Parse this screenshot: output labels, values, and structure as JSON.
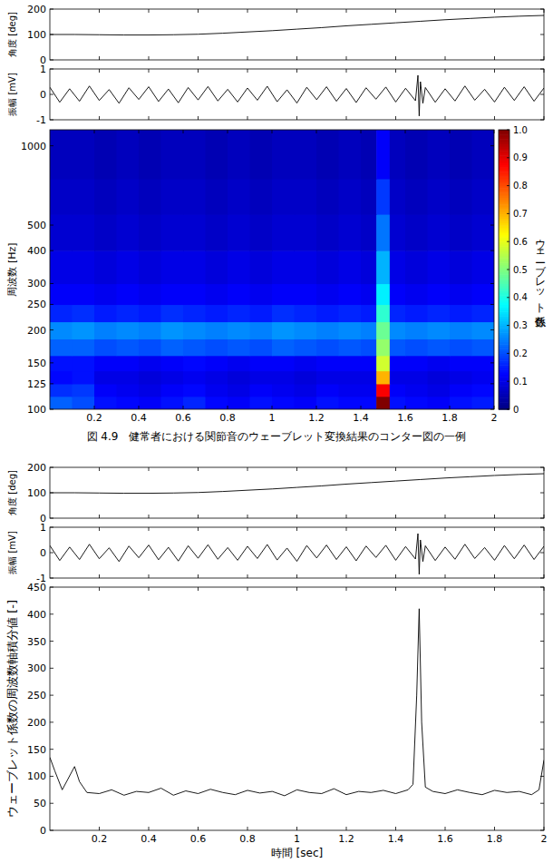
{
  "figure_caption": "図 4.9　健常者における関節音のウェーブレット変換結果のコンター図の一例",
  "chart_data": [
    {
      "type": "line",
      "y_label": "角度 [deg]",
      "color": "#000000",
      "tick_labels": "y",
      "x": [
        0,
        0.1,
        0.2,
        0.3,
        0.4,
        0.5,
        0.6,
        0.7,
        0.8,
        0.9,
        1,
        1.1,
        1.2,
        1.3,
        1.4,
        1.5,
        1.6,
        1.7,
        1.8,
        1.9,
        2
      ],
      "values": [
        100,
        100,
        99,
        98,
        98,
        99,
        101,
        105,
        110,
        115,
        121,
        127,
        134,
        140,
        146,
        152,
        158,
        163,
        168,
        172,
        175
      ],
      "xlim": [
        0,
        2
      ],
      "ylim": [
        0,
        200
      ],
      "xticks": [
        0.2,
        0.4,
        0.6,
        0.8,
        1,
        1.2,
        1.4,
        1.6,
        1.8,
        2
      ],
      "yticks": [
        0,
        100,
        200
      ]
    },
    {
      "type": "line",
      "y_label": "振幅 [mV]",
      "color": "#000000",
      "tick_labels": "y",
      "x": [
        0,
        0.04,
        0.08,
        0.12,
        0.16,
        0.2,
        0.24,
        0.28,
        0.32,
        0.36,
        0.4,
        0.44,
        0.48,
        0.52,
        0.56,
        0.6,
        0.64,
        0.68,
        0.72,
        0.76,
        0.8,
        0.84,
        0.88,
        0.92,
        0.96,
        1,
        1.04,
        1.08,
        1.12,
        1.16,
        1.2,
        1.24,
        1.28,
        1.32,
        1.36,
        1.4,
        1.44,
        1.48,
        1.49,
        1.495,
        1.5,
        1.51,
        1.52,
        1.56,
        1.6,
        1.64,
        1.68,
        1.72,
        1.76,
        1.8,
        1.84,
        1.88,
        1.92,
        1.96,
        2
      ],
      "values": [
        0.28,
        -0.31,
        0.22,
        -0.27,
        0.33,
        -0.24,
        0.19,
        -0.35,
        0.26,
        -0.2,
        0.3,
        -0.28,
        0.21,
        -0.33,
        0.27,
        -0.22,
        0.31,
        -0.26,
        0.2,
        -0.3,
        0.25,
        -0.23,
        0.32,
        -0.29,
        0.18,
        -0.34,
        0.28,
        -0.21,
        0.3,
        -0.27,
        0.23,
        -0.32,
        0.26,
        -0.19,
        0.29,
        -0.3,
        0.24,
        -0.25,
        0.75,
        -0.85,
        0.5,
        -0.35,
        0.27,
        -0.31,
        0.22,
        -0.26,
        0.33,
        -0.23,
        0.2,
        -0.3,
        0.28,
        -0.24,
        0.3,
        -0.27,
        0.25
      ],
      "xlim": [
        0,
        2
      ],
      "ylim": [
        -1,
        1
      ],
      "xticks": [
        0.2,
        0.4,
        0.6,
        0.8,
        1,
        1.2,
        1.4,
        1.6,
        1.8,
        2
      ],
      "yticks": [
        -1,
        0,
        1
      ]
    },
    {
      "type": "heatmap",
      "y_label": "周波数 [Hz]",
      "log": "y",
      "x_edges": [
        0,
        0.1,
        0.2,
        0.3,
        0.4,
        0.5,
        0.6,
        0.7,
        0.8,
        0.9,
        1,
        1.1,
        1.2,
        1.3,
        1.4,
        1.47,
        1.53,
        1.6,
        1.7,
        1.8,
        1.9,
        2
      ],
      "y_edges": [
        100,
        112,
        125,
        140,
        160,
        185,
        215,
        250,
        300,
        400,
        550,
        750,
        1150
      ],
      "cells": [
        [
          0.22,
          0.2,
          0.14,
          0.13,
          0.12,
          0.14,
          0.16,
          0.13,
          0.12,
          0.14,
          0.13,
          0.12,
          0.14,
          0.13,
          0.13,
          1.0,
          0.14,
          0.13,
          0.12,
          0.14,
          0.15
        ],
        [
          0.17,
          0.18,
          0.12,
          0.11,
          0.1,
          0.12,
          0.13,
          0.11,
          0.1,
          0.12,
          0.11,
          0.1,
          0.12,
          0.11,
          0.11,
          0.88,
          0.12,
          0.11,
          0.1,
          0.12,
          0.13
        ],
        [
          0.13,
          0.14,
          0.1,
          0.1,
          0.09,
          0.1,
          0.11,
          0.1,
          0.09,
          0.1,
          0.1,
          0.09,
          0.1,
          0.1,
          0.1,
          0.7,
          0.1,
          0.1,
          0.09,
          0.1,
          0.11
        ],
        [
          0.14,
          0.14,
          0.12,
          0.12,
          0.11,
          0.12,
          0.13,
          0.12,
          0.11,
          0.12,
          0.12,
          0.11,
          0.12,
          0.12,
          0.12,
          0.58,
          0.12,
          0.12,
          0.11,
          0.12,
          0.12
        ],
        [
          0.22,
          0.22,
          0.2,
          0.21,
          0.2,
          0.22,
          0.21,
          0.2,
          0.21,
          0.2,
          0.22,
          0.21,
          0.2,
          0.21,
          0.2,
          0.52,
          0.21,
          0.2,
          0.21,
          0.2,
          0.21
        ],
        [
          0.26,
          0.27,
          0.25,
          0.26,
          0.25,
          0.27,
          0.26,
          0.25,
          0.26,
          0.25,
          0.27,
          0.26,
          0.25,
          0.26,
          0.25,
          0.48,
          0.26,
          0.25,
          0.26,
          0.25,
          0.26
        ],
        [
          0.16,
          0.17,
          0.15,
          0.16,
          0.15,
          0.17,
          0.16,
          0.15,
          0.16,
          0.15,
          0.17,
          0.16,
          0.15,
          0.16,
          0.15,
          0.42,
          0.16,
          0.15,
          0.16,
          0.15,
          0.16
        ],
        [
          0.12,
          0.12,
          0.11,
          0.12,
          0.11,
          0.12,
          0.12,
          0.11,
          0.12,
          0.11,
          0.12,
          0.12,
          0.11,
          0.12,
          0.11,
          0.36,
          0.12,
          0.11,
          0.12,
          0.11,
          0.12
        ],
        [
          0.1,
          0.1,
          0.09,
          0.1,
          0.09,
          0.1,
          0.1,
          0.09,
          0.1,
          0.09,
          0.1,
          0.1,
          0.09,
          0.1,
          0.09,
          0.3,
          0.1,
          0.09,
          0.1,
          0.09,
          0.1
        ],
        [
          0.08,
          0.08,
          0.07,
          0.08,
          0.07,
          0.08,
          0.08,
          0.07,
          0.08,
          0.07,
          0.08,
          0.08,
          0.07,
          0.08,
          0.07,
          0.24,
          0.08,
          0.07,
          0.08,
          0.07,
          0.08
        ],
        [
          0.07,
          0.07,
          0.06,
          0.07,
          0.06,
          0.07,
          0.07,
          0.06,
          0.07,
          0.06,
          0.07,
          0.07,
          0.06,
          0.07,
          0.06,
          0.18,
          0.07,
          0.06,
          0.07,
          0.06,
          0.07
        ],
        [
          0.06,
          0.06,
          0.05,
          0.06,
          0.05,
          0.06,
          0.06,
          0.05,
          0.06,
          0.05,
          0.06,
          0.06,
          0.05,
          0.06,
          0.05,
          0.12,
          0.06,
          0.05,
          0.06,
          0.05,
          0.06
        ]
      ],
      "xlim": [
        0,
        2
      ],
      "ylim": [
        100,
        1150
      ],
      "xticks": [
        0.2,
        0.4,
        0.6,
        0.8,
        1,
        1.2,
        1.4,
        1.6,
        1.8,
        2
      ],
      "yticks": [
        100,
        125,
        150,
        200,
        250,
        300,
        400,
        500,
        1000
      ],
      "colorbar": {
        "label": "ウェーブレット係数",
        "range": [
          0,
          1
        ],
        "ticks": [
          0,
          0.1,
          0.2,
          0.3,
          0.4,
          0.5,
          0.6,
          0.7,
          0.8,
          0.9,
          {
            "value": 1,
            "label": "1.0"
          }
        ]
      }
    },
    {
      "type": "line",
      "y_label": "角度 [deg]",
      "color": "#000000",
      "tick_labels": "y",
      "x": [
        0,
        0.1,
        0.2,
        0.3,
        0.4,
        0.5,
        0.6,
        0.7,
        0.8,
        0.9,
        1,
        1.1,
        1.2,
        1.3,
        1.4,
        1.5,
        1.6,
        1.7,
        1.8,
        1.9,
        2
      ],
      "values": [
        100,
        100,
        99,
        98,
        98,
        99,
        101,
        105,
        110,
        115,
        121,
        127,
        134,
        140,
        146,
        152,
        158,
        163,
        168,
        172,
        175
      ],
      "xlim": [
        0,
        2
      ],
      "ylim": [
        0,
        200
      ],
      "xticks": [
        0.2,
        0.4,
        0.6,
        0.8,
        1,
        1.2,
        1.4,
        1.6,
        1.8,
        2
      ],
      "yticks": [
        0,
        100,
        200
      ]
    },
    {
      "type": "line",
      "y_label": "振幅 [mV]",
      "color": "#000000",
      "tick_labels": "y",
      "x": [
        0,
        0.04,
        0.08,
        0.12,
        0.16,
        0.2,
        0.24,
        0.28,
        0.32,
        0.36,
        0.4,
        0.44,
        0.48,
        0.52,
        0.56,
        0.6,
        0.64,
        0.68,
        0.72,
        0.76,
        0.8,
        0.84,
        0.88,
        0.92,
        0.96,
        1,
        1.04,
        1.08,
        1.12,
        1.16,
        1.2,
        1.24,
        1.28,
        1.32,
        1.36,
        1.4,
        1.44,
        1.48,
        1.49,
        1.495,
        1.5,
        1.51,
        1.52,
        1.56,
        1.6,
        1.64,
        1.68,
        1.72,
        1.76,
        1.8,
        1.84,
        1.88,
        1.92,
        1.96,
        2
      ],
      "values": [
        0.28,
        -0.31,
        0.22,
        -0.27,
        0.33,
        -0.24,
        0.19,
        -0.35,
        0.26,
        -0.2,
        0.3,
        -0.28,
        0.21,
        -0.33,
        0.27,
        -0.22,
        0.31,
        -0.26,
        0.2,
        -0.3,
        0.25,
        -0.23,
        0.32,
        -0.29,
        0.18,
        -0.34,
        0.28,
        -0.21,
        0.3,
        -0.27,
        0.23,
        -0.32,
        0.26,
        -0.19,
        0.29,
        -0.3,
        0.24,
        -0.25,
        0.75,
        -0.85,
        0.5,
        -0.35,
        0.27,
        -0.31,
        0.22,
        -0.26,
        0.33,
        -0.23,
        0.2,
        -0.3,
        0.28,
        -0.24,
        0.3,
        -0.27,
        0.25
      ],
      "xlim": [
        0,
        2
      ],
      "ylim": [
        -1,
        1
      ],
      "xticks": [
        0.2,
        0.4,
        0.6,
        0.8,
        1,
        1.2,
        1.4,
        1.6,
        1.8,
        2
      ],
      "yticks": [
        -1,
        0,
        1
      ]
    },
    {
      "type": "line",
      "y_label": "ウェーブレット係数の周波数軸積分値 [-]",
      "x_label": "時間 [sec]",
      "color": "#000000",
      "x": [
        0,
        0.02,
        0.05,
        0.1,
        0.12,
        0.15,
        0.2,
        0.25,
        0.3,
        0.35,
        0.4,
        0.45,
        0.5,
        0.55,
        0.6,
        0.65,
        0.7,
        0.75,
        0.8,
        0.85,
        0.9,
        0.95,
        1,
        1.05,
        1.1,
        1.15,
        1.2,
        1.25,
        1.3,
        1.35,
        1.4,
        1.45,
        1.47,
        1.485,
        1.495,
        1.505,
        1.52,
        1.55,
        1.6,
        1.65,
        1.7,
        1.75,
        1.8,
        1.85,
        1.9,
        1.95,
        1.98,
        2
      ],
      "values": [
        135,
        110,
        75,
        118,
        90,
        70,
        68,
        75,
        65,
        72,
        70,
        78,
        65,
        73,
        68,
        76,
        70,
        66,
        74,
        69,
        72,
        64,
        75,
        70,
        68,
        77,
        66,
        72,
        70,
        74,
        68,
        75,
        85,
        250,
        410,
        200,
        80,
        72,
        68,
        75,
        70,
        66,
        74,
        70,
        72,
        66,
        75,
        130
      ],
      "xlim": [
        0,
        2
      ],
      "ylim": [
        0,
        450
      ],
      "xticks": [
        0.2,
        0.4,
        0.6,
        0.8,
        1,
        1.2,
        1.4,
        1.6,
        1.8,
        2
      ],
      "yticks": [
        0,
        50,
        100,
        150,
        200,
        250,
        300,
        350,
        400,
        450
      ]
    }
  ]
}
